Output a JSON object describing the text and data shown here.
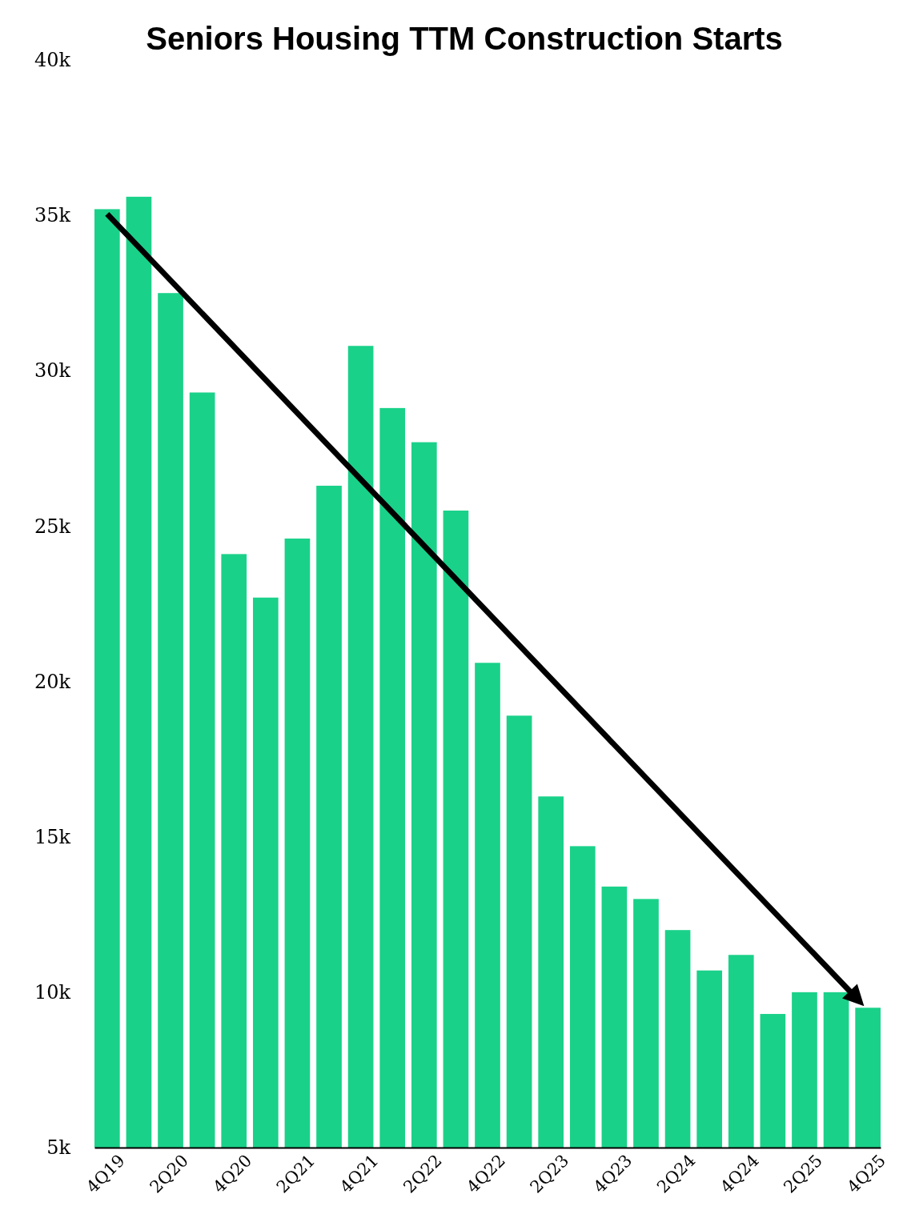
{
  "chart_data": {
    "type": "bar",
    "title": "Seniors Housing TTM Construction Starts",
    "categories": [
      "4Q19",
      null,
      "2Q20",
      null,
      "4Q20",
      null,
      "2Q21",
      null,
      "4Q21",
      null,
      "2Q22",
      null,
      "4Q22",
      null,
      "2Q23",
      null,
      "4Q23",
      null,
      "2Q24",
      null,
      "4Q24",
      null,
      "2Q25",
      null,
      "4Q25"
    ],
    "values": [
      35.2,
      35.6,
      32.5,
      29.3,
      24.1,
      22.7,
      24.6,
      26.3,
      30.8,
      28.8,
      27.7,
      25.5,
      20.6,
      18.9,
      16.3,
      14.7,
      13.4,
      13.0,
      12.0,
      10.7,
      11.2,
      9.3,
      10.0,
      10.0,
      9.5
    ],
    "color": "#1ad189",
    "ylim": [
      5,
      40
    ],
    "yticks": [
      {
        "value": 5,
        "label": "5k"
      },
      {
        "value": 10,
        "label": "10k"
      },
      {
        "value": 15,
        "label": "15k"
      },
      {
        "value": 20,
        "label": "20k"
      },
      {
        "value": 25,
        "label": "25k"
      },
      {
        "value": 30,
        "label": "30k"
      },
      {
        "value": 35,
        "label": "35k"
      },
      {
        "value": 40,
        "label": "40k"
      }
    ],
    "grid": false
  }
}
